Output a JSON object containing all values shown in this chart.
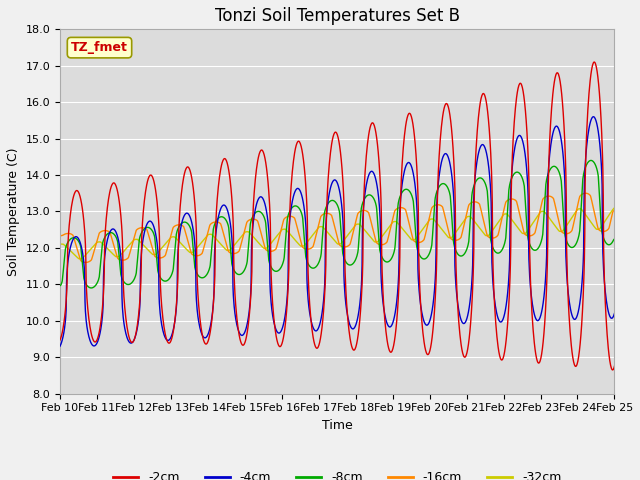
{
  "title": "Tonzi Soil Temperatures Set B",
  "xlabel": "Time",
  "ylabel": "Soil Temperature (C)",
  "ylim": [
    8.0,
    18.0
  ],
  "yticks": [
    8.0,
    9.0,
    10.0,
    11.0,
    12.0,
    13.0,
    14.0,
    15.0,
    16.0,
    17.0,
    18.0
  ],
  "xtick_labels": [
    "Feb 10",
    "Feb 11",
    "Feb 12",
    "Feb 13",
    "Feb 14",
    "Feb 15",
    "Feb 16",
    "Feb 17",
    "Feb 18",
    "Feb 19",
    "Feb 20",
    "Feb 21",
    "Feb 22",
    "Feb 23",
    "Feb 24",
    "Feb 25"
  ],
  "legend_label": "TZ_fmet",
  "series_labels": [
    "-2cm",
    "-4cm",
    "-8cm",
    "-16cm",
    "-32cm"
  ],
  "series_colors": [
    "#dd0000",
    "#0000cc",
    "#00aa00",
    "#ff8800",
    "#cccc00"
  ],
  "background_color": "#dcdcdc",
  "plot_bg_color": "#dcdcdc",
  "grid_color": "#ffffff",
  "title_fontsize": 12,
  "axis_fontsize": 9,
  "tick_fontsize": 8,
  "legend_fontsize": 9,
  "fig_facecolor": "#f0f0f0"
}
